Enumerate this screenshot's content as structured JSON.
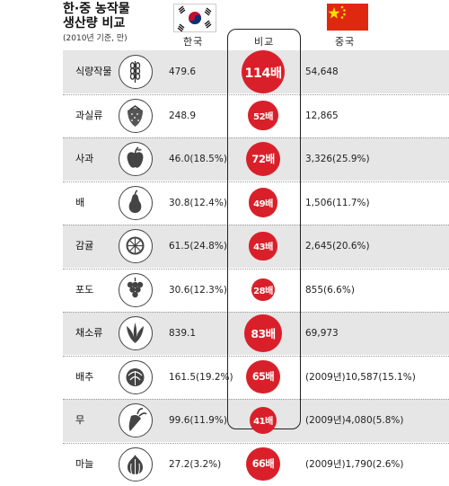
{
  "title_line1": "한·중 농작물",
  "title_line2": "생산량 비교",
  "subtitle": "(2010년 기준, 만)",
  "columns": {
    "korea": "한국",
    "compare": "비교",
    "china": "중국"
  },
  "colors": {
    "accent": "#d9202a",
    "row_shade": "#e6e6e6",
    "china_flag": "#de2910"
  },
  "chart_data": {
    "type": "table",
    "unit": "만",
    "rows": [
      {
        "crop": "식량작물",
        "icon": "wheat-icon",
        "korea": "479.6",
        "ratio_label": "114배",
        "ratio": 114,
        "china": "54,648"
      },
      {
        "crop": "과실류",
        "icon": "strawberry-icon",
        "korea": "248.9",
        "ratio_label": "52배",
        "ratio": 52,
        "china": "12,865"
      },
      {
        "crop": "사과",
        "icon": "apple-icon",
        "korea": "46.0(18.5%)",
        "ratio_label": "72배",
        "ratio": 72,
        "china": "3,326(25.9%)"
      },
      {
        "crop": "배",
        "icon": "pear-icon",
        "korea": "30.8(12.4%)",
        "ratio_label": "49배",
        "ratio": 49,
        "china": "1,506(11.7%)"
      },
      {
        "crop": "감귤",
        "icon": "citrus-icon",
        "korea": "61.5(24.8%)",
        "ratio_label": "43배",
        "ratio": 43,
        "china": "2,645(20.6%)"
      },
      {
        "crop": "포도",
        "icon": "grape-icon",
        "korea": "30.6(12.3%)",
        "ratio_label": "28배",
        "ratio": 28,
        "china": "855(6.6%)"
      },
      {
        "crop": "채소류",
        "icon": "leaf-icon",
        "korea": "839.1",
        "ratio_label": "83배",
        "ratio": 83,
        "china": "69,973"
      },
      {
        "crop": "배추",
        "icon": "cabbage-icon",
        "korea": "161.5(19.2%)",
        "ratio_label": "65배",
        "ratio": 65,
        "china": "(2009년)10,587(15.1%)"
      },
      {
        "crop": "무",
        "icon": "radish-icon",
        "korea": "99.6(11.9%)",
        "ratio_label": "41배",
        "ratio": 41,
        "china": "(2009년)4,080(5.8%)"
      },
      {
        "crop": "마늘",
        "icon": "garlic-icon",
        "korea": "27.2(3.2%)",
        "ratio_label": "66배",
        "ratio": 66,
        "china": "(2009년)1,790(2.6%)"
      }
    ]
  }
}
